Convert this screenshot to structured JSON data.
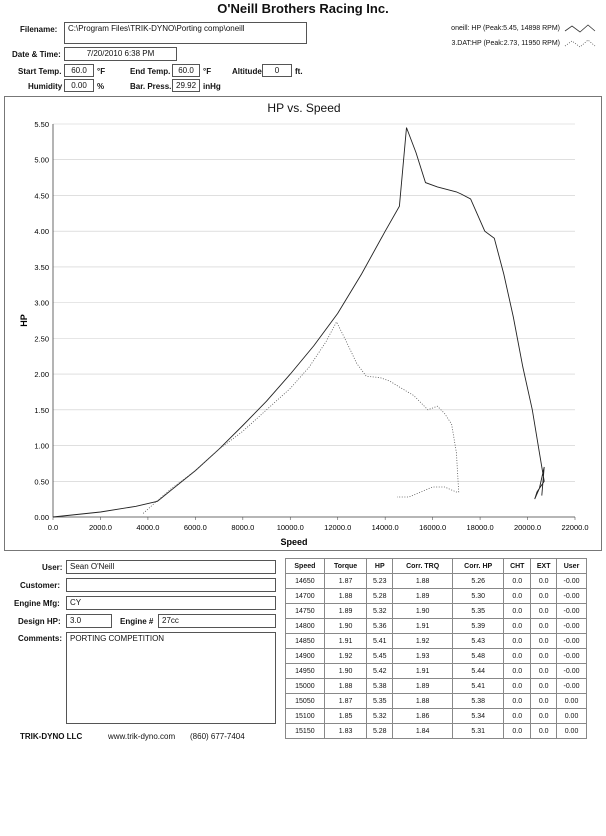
{
  "header": {
    "title": "O'Neill Brothers Racing Inc.",
    "filename_label": "Filename:",
    "filename": "C:\\Program Files\\TRIK-DYNO\\Porting comp\\oneill",
    "datetime_label": "Date & Time:",
    "datetime": "7/20/2010 6:38 PM",
    "start_temp_label": "Start Temp.",
    "start_temp": "60.0",
    "end_temp_label": "End Temp.",
    "end_temp": "60.0",
    "temp_unit": "°F",
    "altitude_label": "Altitude",
    "altitude": "0",
    "altitude_unit": "ft.",
    "humidity_label": "Humidity",
    "humidity": "0.00",
    "humidity_unit": "%",
    "baro_label": "Bar. Press.",
    "baro": "29.92",
    "baro_unit": "inHg"
  },
  "chart_data": {
    "type": "line",
    "title": "HP vs. Speed",
    "xlabel": "Speed",
    "ylabel": "HP",
    "xlim": [
      0,
      22000
    ],
    "ylim": [
      0,
      5.5
    ],
    "x_ticks": [
      "0.0",
      "2000.0",
      "4000.0",
      "6000.0",
      "8000.0",
      "10000.0",
      "12000.0",
      "14000.0",
      "16000.0",
      "18000.0",
      "20000.0",
      "22000.0"
    ],
    "y_ticks": [
      "0.00",
      "0.50",
      "1.00",
      "1.50",
      "2.00",
      "2.50",
      "3.00",
      "3.50",
      "4.00",
      "4.50",
      "5.00",
      "5.50"
    ],
    "grid": true,
    "legend_position": "top-right",
    "series": [
      {
        "name": "oneill: HP (Peak:5.45, 14898 RPM)",
        "style": "solid",
        "x": [
          0,
          2000,
          3500,
          4400,
          5000,
          6000,
          7000,
          8000,
          9000,
          10000,
          11000,
          12000,
          13000,
          14000,
          14600,
          14900,
          15300,
          15700,
          16200,
          17000,
          17200,
          17600,
          18200,
          18600,
          19000,
          19400,
          19800,
          20200,
          20500,
          20600,
          20700,
          20400,
          20300,
          20500,
          20700,
          20600
        ],
        "y": [
          0,
          0.07,
          0.15,
          0.22,
          0.38,
          0.65,
          0.95,
          1.28,
          1.62,
          2.0,
          2.4,
          2.85,
          3.4,
          4.0,
          4.35,
          5.45,
          5.1,
          4.68,
          4.62,
          4.55,
          4.52,
          4.45,
          4.0,
          3.9,
          3.4,
          2.8,
          2.1,
          1.5,
          0.9,
          0.7,
          0.5,
          0.35,
          0.25,
          0.4,
          0.7,
          0.3
        ]
      },
      {
        "name": "3.DAT:HP (Peak:2.73, 11950 RPM)",
        "style": "dotted",
        "x": [
          3800,
          4300,
          5000,
          6000,
          7000,
          8000,
          9000,
          10000,
          10800,
          11500,
          11950,
          12300,
          12800,
          13200,
          13800,
          14200,
          14600,
          15200,
          15800,
          16200,
          16500,
          16800,
          17000,
          17100,
          17000,
          16500,
          16000,
          15500,
          15000,
          14500
        ],
        "y": [
          0.05,
          0.2,
          0.4,
          0.65,
          0.95,
          1.2,
          1.5,
          1.8,
          2.1,
          2.45,
          2.73,
          2.5,
          2.15,
          1.97,
          1.95,
          1.9,
          1.82,
          1.7,
          1.5,
          1.55,
          1.45,
          1.3,
          0.9,
          0.35,
          0.35,
          0.42,
          0.42,
          0.35,
          0.28,
          0.28
        ]
      }
    ]
  },
  "info": {
    "user_label": "User:",
    "user": "Sean O'Neill",
    "customer_label": "Customer:",
    "customer": "",
    "engine_mfg_label": "Engine Mfg:",
    "engine_mfg": "CY",
    "design_hp_label": "Design HP:",
    "design_hp": "3.0",
    "engine_num_label": "Engine #",
    "engine_num": "27cc",
    "comments_label": "Comments:",
    "comments": "PORTING COMPETITION"
  },
  "table": {
    "headers": [
      "Speed",
      "Torque",
      "HP",
      "Corr. TRQ",
      "Corr. HP",
      "CHT",
      "EXT",
      "User"
    ],
    "rows": [
      [
        "14650",
        "1.87",
        "5.23",
        "1.88",
        "5.26",
        "0.0",
        "0.0",
        "-0.00"
      ],
      [
        "14700",
        "1.88",
        "5.28",
        "1.89",
        "5.30",
        "0.0",
        "0.0",
        "-0.00"
      ],
      [
        "14750",
        "1.89",
        "5.32",
        "1.90",
        "5.35",
        "0.0",
        "0.0",
        "-0.00"
      ],
      [
        "14800",
        "1.90",
        "5.36",
        "1.91",
        "5.39",
        "0.0",
        "0.0",
        "-0.00"
      ],
      [
        "14850",
        "1.91",
        "5.41",
        "1.92",
        "5.43",
        "0.0",
        "0.0",
        "-0.00"
      ],
      [
        "14900",
        "1.92",
        "5.45",
        "1.93",
        "5.48",
        "0.0",
        "0.0",
        "-0.00"
      ],
      [
        "14950",
        "1.90",
        "5.42",
        "1.91",
        "5.44",
        "0.0",
        "0.0",
        "-0.00"
      ],
      [
        "15000",
        "1.88",
        "5.38",
        "1.89",
        "5.41",
        "0.0",
        "0.0",
        "-0.00"
      ],
      [
        "15050",
        "1.87",
        "5.35",
        "1.88",
        "5.38",
        "0.0",
        "0.0",
        "0.00"
      ],
      [
        "15100",
        "1.85",
        "5.32",
        "1.86",
        "5.34",
        "0.0",
        "0.0",
        "0.00"
      ],
      [
        "15150",
        "1.83",
        "5.28",
        "1.84",
        "5.31",
        "0.0",
        "0.0",
        "0.00"
      ]
    ]
  },
  "footer": {
    "company": "TRIK-DYNO LLC",
    "website": "www.trik-dyno.com",
    "phone": "(860) 677-7404"
  }
}
